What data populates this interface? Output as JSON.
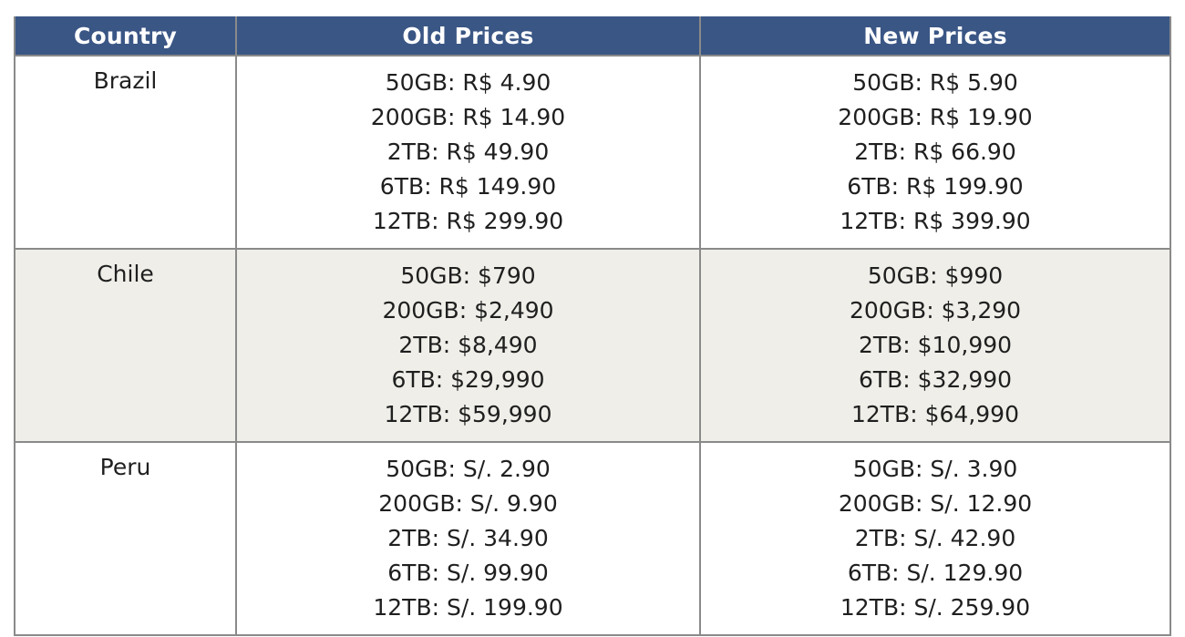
{
  "table": {
    "headers": {
      "country": "Country",
      "old": "Old Prices",
      "new": "New Prices"
    },
    "rows": [
      {
        "country": "Brazil",
        "old": [
          "50GB: R$ 4.90",
          "200GB: R$ 14.90",
          "2TB: R$ 49.90",
          "6TB: R$ 149.90",
          "12TB: R$ 299.90"
        ],
        "new": [
          "50GB: R$ 5.90",
          "200GB: R$ 19.90",
          "2TB: R$ 66.90",
          "6TB: R$ 199.90",
          "12TB: R$ 399.90"
        ]
      },
      {
        "country": "Chile",
        "old": [
          "50GB: $790",
          "200GB: $2,490",
          "2TB: $8,490",
          "6TB: $29,990",
          "12TB: $59,990"
        ],
        "new": [
          "50GB: $990",
          "200GB: $3,290",
          "2TB: $10,990",
          "6TB: $32,990",
          "12TB: $64,990"
        ]
      },
      {
        "country": "Peru",
        "old": [
          "50GB: S/. 2.90",
          "200GB: S/. 9.90",
          "2TB: S/. 34.90",
          "6TB: S/. 99.90",
          "12TB: S/. 199.90"
        ],
        "new": [
          "50GB: S/. 3.90",
          "200GB: S/. 12.90",
          "2TB: S/. 42.90",
          "6TB: S/. 129.90",
          "12TB: S/. 259.90"
        ]
      }
    ]
  },
  "colors": {
    "header_bg": "#3a5685",
    "header_text": "#ffffff",
    "alt_row_bg": "#efeee8",
    "border": "#8a8a8a"
  }
}
